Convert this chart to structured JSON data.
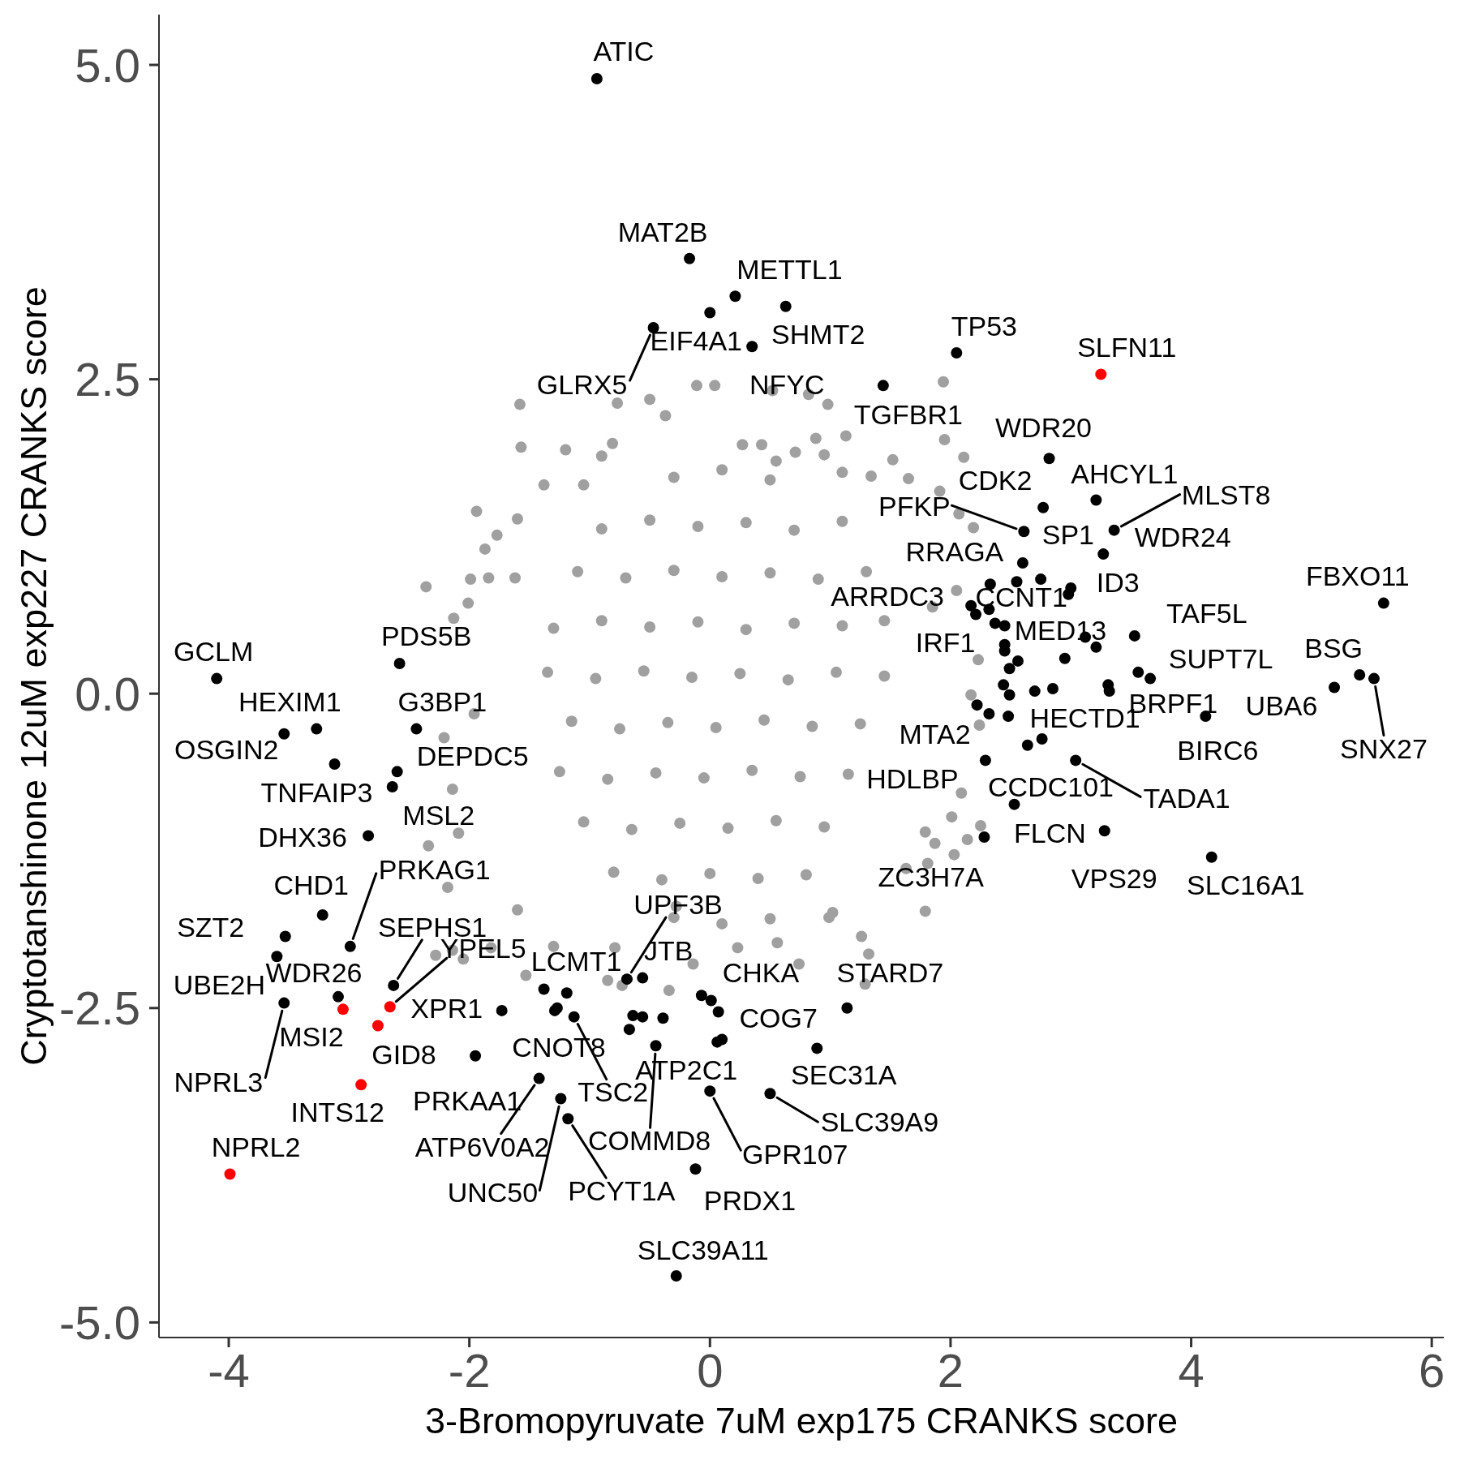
{
  "chart_data": {
    "type": "scatter",
    "xlabel": "3-Bromopyruvate 7uM exp175 CRANKS score",
    "ylabel": "Cryptotanshinone 12uM exp227 CRANKS score",
    "xlim": [
      -4.58,
      6.1
    ],
    "ylim": [
      -5.12,
      5.4
    ],
    "xticks": [
      -4,
      -2,
      0,
      2,
      4,
      6
    ],
    "yticks": [
      {
        "value": -5,
        "label": "-5.0"
      },
      -2.5,
      {
        "value": 0,
        "label": "0.0"
      },
      2.5,
      {
        "value": 5,
        "label": "5.0"
      }
    ],
    "marker": "circle",
    "series": [
      {
        "color": "#a0a0a0",
        "x": [
          -1.58,
          -1.57,
          -1.94,
          -1.77,
          -1.87,
          -2.36,
          -1.99,
          -1.84,
          -2.01,
          -1.38,
          -0.77,
          -0.5,
          -0.37,
          -0.11,
          0.04,
          -0.81,
          -0.9,
          -1.05,
          -1.2,
          -1.6,
          -1.62,
          1.94,
          0.52,
          0.82,
          0.98,
          1.13,
          1.95,
          2.11,
          0.88,
          0.95,
          1.91,
          2.07,
          2.19,
          1.65,
          1.52,
          0.43,
          0.27,
          0.71,
          0.55,
          1.34,
          1.1,
          2.05,
          1.85,
          1.79,
          1.26,
          1.32,
          1.29,
          1.02,
          2.25,
          2.14,
          2.01,
          2.09,
          1.87,
          1.81,
          2.24,
          2.23,
          2.17,
          2.03,
          1.63,
          1.79,
          -0.34,
          -0.14,
          0.56,
          0.74,
          0.23,
          0.99,
          -0.79,
          -0.85,
          -0.73,
          -1.53,
          -1.3,
          -2.14,
          -2.05,
          -2.28,
          -1.6,
          -0.28,
          -2.34,
          -2.09,
          -2.13,
          -2.18,
          -2.21,
          -2.14,
          -1.96,
          -1.82,
          -0.3,
          0.1,
          0.5,
          -0.9,
          -0.5,
          -0.1,
          0.3,
          0.7,
          1.1,
          -1.1,
          -0.7,
          -0.3,
          0.1,
          0.5,
          0.9,
          1.3,
          -1.3,
          -0.9,
          -0.5,
          -0.1,
          0.3,
          0.7,
          1.1,
          1.45,
          -1.35,
          -0.95,
          -0.55,
          -0.15,
          0.25,
          0.65,
          1.05,
          1.45,
          -1.15,
          -0.75,
          -0.35,
          0.05,
          0.45,
          0.85,
          1.25,
          -1.25,
          -0.85,
          -0.45,
          -0.05,
          0.35,
          0.75,
          1.15,
          -1.05,
          -0.65,
          -0.25,
          0.15,
          0.55,
          0.95,
          -0.8,
          -0.4,
          0,
          0.4,
          0.8,
          -0.3,
          0.1,
          0.5
        ],
        "values": [
          2.3,
          1.96,
          1.45,
          1.26,
          1.15,
          0.85,
          0.91,
          0.92,
          0.72,
          1.66,
          2.31,
          2.34,
          2.21,
          2.45,
          2.45,
          1.99,
          1.89,
          1.66,
          1.94,
          1.39,
          0.92,
          2.48,
          2.41,
          2.38,
          2.3,
          2.05,
          2.02,
          1.88,
          2.03,
          1.9,
          1.61,
          1.43,
          1.32,
          1.71,
          1.86,
          1.98,
          1.98,
          1.92,
          1.85,
          1.73,
          1.76,
          0.82,
          0.69,
          -1.73,
          -1.93,
          -2.07,
          -2.31,
          -1.74,
          -1.05,
          -1.16,
          -0.98,
          -0.79,
          -1.19,
          -1.35,
          -0.25,
          0.27,
          -0.01,
          -1.28,
          -1.39,
          -1.1,
          -2.36,
          -2.15,
          -1.98,
          -2.15,
          -2.02,
          -1.78,
          -2.02,
          -2.28,
          -2.32,
          -2.24,
          -2.01,
          -2.04,
          -2.11,
          -2.08,
          -1.72,
          -1.69,
          -1.21,
          -1.11,
          0.6,
          -1.54,
          -0.35,
          -0.76,
          -0.16,
          -2.02,
          1.72,
          1.78,
          1.7,
          1.31,
          1.38,
          1.33,
          1.36,
          1.3,
          1.37,
          0.97,
          0.92,
          0.98,
          0.93,
          0.96,
          0.91,
          0.97,
          0.52,
          0.58,
          0.53,
          0.57,
          0.51,
          0.56,
          0.54,
          0.58,
          0.17,
          0.12,
          0.18,
          0.13,
          0.16,
          0.11,
          0.17,
          0.14,
          -0.22,
          -0.28,
          -0.23,
          -0.27,
          -0.21,
          -0.26,
          -0.24,
          -0.62,
          -0.68,
          -0.63,
          -0.67,
          -0.61,
          -0.66,
          -0.64,
          -1.02,
          -1.08,
          -1.03,
          -1.07,
          -1.01,
          -1.06,
          -1.42,
          -1.48,
          -1.43,
          -1.47,
          -1.44,
          -1.78,
          -1.83,
          -1.79
        ]
      },
      {
        "color": "#000000",
        "x": [
          -0.94,
          -0.17,
          0,
          -0.47,
          0.21,
          0.63,
          0.35,
          1.44,
          2.05,
          2.82,
          2.77,
          3.21,
          2.61,
          3.36,
          3.27,
          2.6,
          2.33,
          2.55,
          2.75,
          3,
          2.98,
          5.6,
          2.17,
          2.32,
          2.21,
          2.37,
          2.45,
          3.53,
          3.12,
          3.21,
          2.45,
          2.45,
          2.56,
          2.49,
          2.95,
          3.56,
          3.66,
          3.31,
          3.32,
          2.44,
          2.49,
          2.7,
          2.85,
          2.22,
          2.32,
          2.48,
          4.12,
          5.19,
          5.4,
          5.52,
          2.64,
          2.76,
          2.29,
          3.04,
          2.53,
          2.28,
          3.28,
          4.17,
          -0.69,
          -0.56,
          -1.38,
          -1.19,
          -1.27,
          -1.29,
          -1.13,
          -1.73,
          -0.64,
          -0.56,
          -0.39,
          -0.67,
          -0.45,
          -0.07,
          0.01,
          0.07,
          0.06,
          0.1,
          1.14,
          0.89,
          0,
          0.5,
          -0.12,
          -0.28,
          -1.42,
          -1.24,
          -1.18,
          -1.95,
          -4.1,
          -3.27,
          -3.54,
          -3.12,
          -2.6,
          -2.64,
          -2.58,
          -2.44,
          -2.84,
          -3.22,
          -2.99,
          -3.53,
          -3.6,
          -3.09,
          -3.54,
          -2.63
        ],
        "values": [
          4.89,
          3.46,
          3.03,
          2.91,
          3.16,
          3.08,
          2.76,
          2.45,
          2.71,
          1.87,
          1.48,
          1.54,
          1.29,
          1.3,
          1.11,
          1.04,
          0.87,
          0.89,
          0.91,
          0.84,
          0.79,
          0.72,
          0.7,
          0.67,
          0.63,
          0.56,
          0.54,
          0.46,
          0.45,
          0.37,
          0.39,
          0.34,
          0.26,
          0.2,
          0.28,
          0.17,
          0.12,
          0.07,
          0.02,
          0.07,
          -0.01,
          0.02,
          0.04,
          -0.09,
          -0.16,
          -0.18,
          -0.18,
          0.05,
          0.15,
          0.12,
          -0.41,
          -0.36,
          -0.53,
          -0.53,
          -0.88,
          -1.14,
          -1.09,
          -1.3,
          -2.27,
          -2.26,
          -2.35,
          -2.38,
          -2.5,
          -2.52,
          -2.57,
          -2.52,
          -2.56,
          -2.57,
          -2.58,
          -2.67,
          -2.8,
          -2.4,
          -2.44,
          -2.53,
          -2.77,
          -2.75,
          -2.5,
          -2.82,
          -3.16,
          -3.18,
          -3.78,
          -4.63,
          -3.06,
          -3.22,
          -3.38,
          -2.88,
          0.12,
          -0.28,
          -0.32,
          -0.56,
          -0.62,
          -0.74,
          0.24,
          -0.28,
          -1.13,
          -1.76,
          -2.01,
          -1.93,
          -2.09,
          -2.41,
          -2.46,
          -2.32
        ]
      },
      {
        "color": "#ff0000",
        "x": [
          3.25,
          -3.05,
          -2.66,
          -2.76,
          -2.9,
          -3.99
        ],
        "values": [
          2.54,
          -2.51,
          -2.49,
          -2.64,
          -3.11,
          -3.82
        ]
      }
    ],
    "annotations": [
      {
        "text": "ATIC",
        "x": -0.94,
        "y": 4.89
      },
      {
        "text": "MAT2B",
        "x": -0.17,
        "y": 3.46
      },
      {
        "text": "METTL1",
        "x": 0.21,
        "y": 3.16
      },
      {
        "text": "SHMT2",
        "x": 0.63,
        "y": 3.08
      },
      {
        "text": "EIF4A1",
        "x": 0,
        "y": 3.03
      },
      {
        "text": "GLRX5",
        "x": -0.47,
        "y": 2.91
      },
      {
        "text": "NFYC",
        "x": 0.35,
        "y": 2.76
      },
      {
        "text": "TP53",
        "x": 2.05,
        "y": 2.71
      },
      {
        "text": "SLFN11",
        "x": 3.25,
        "y": 2.54
      },
      {
        "text": "TGFBR1",
        "x": 1.44,
        "y": 2.45
      },
      {
        "text": "WDR20",
        "x": 2.82,
        "y": 1.87
      },
      {
        "text": "AHCYL1",
        "x": 3.21,
        "y": 1.54
      },
      {
        "text": "CDK2",
        "x": 2.77,
        "y": 1.48
      },
      {
        "text": "MLST8",
        "x": 3.36,
        "y": 1.3
      },
      {
        "text": "PFKP",
        "x": 2.61,
        "y": 1.29
      },
      {
        "text": "WDR24",
        "x": 3.27,
        "y": 1.11
      },
      {
        "text": "SP1",
        "x": 2.6,
        "y": 1.04
      },
      {
        "text": "RRAGA",
        "x": 2.33,
        "y": 0.87
      },
      {
        "text": "CCNT1",
        "x": 2.75,
        "y": 0.91
      },
      {
        "text": "ID3",
        "x": 3,
        "y": 0.84
      },
      {
        "text": "FBXO11",
        "x": 5.6,
        "y": 0.72
      },
      {
        "text": "ARRDC3",
        "x": 2.17,
        "y": 0.7
      },
      {
        "text": "TAF5L",
        "x": 3.53,
        "y": 0.46
      },
      {
        "text": "MED13",
        "x": 3.21,
        "y": 0.37
      },
      {
        "text": "IRF1",
        "x": 2.45,
        "y": 0.39
      },
      {
        "text": "SUPT7L",
        "x": 3.66,
        "y": 0.12
      },
      {
        "text": "BSG",
        "x": 5.4,
        "y": 0.15
      },
      {
        "text": "SNX27",
        "x": 5.52,
        "y": 0.12
      },
      {
        "text": "UBA6",
        "x": 5.19,
        "y": 0.05
      },
      {
        "text": "BRPF1",
        "x": 3.56,
        "y": 0.17
      },
      {
        "text": "BIRC6",
        "x": 4.12,
        "y": -0.18
      },
      {
        "text": "HECTD1",
        "x": 2.76,
        "y": -0.36
      },
      {
        "text": "MTA2",
        "x": 2.22,
        "y": -0.09
      },
      {
        "text": "HDLBP",
        "x": 2.29,
        "y": -0.53
      },
      {
        "text": "TADA1",
        "x": 3.04,
        "y": -0.53
      },
      {
        "text": "CCDC101",
        "x": 2.53,
        "y": -0.88
      },
      {
        "text": "FLCN",
        "x": 2.28,
        "y": -1.14
      },
      {
        "text": "VPS29",
        "x": 3.28,
        "y": -1.09
      },
      {
        "text": "ZC3H7A",
        "x": 1.79,
        "y": -1.73
      },
      {
        "text": "SLC16A1",
        "x": 4.17,
        "y": -1.3
      },
      {
        "text": "GCLM",
        "x": -4.1,
        "y": 0.12
      },
      {
        "text": "PDS5B",
        "x": -2.58,
        "y": 0.24
      },
      {
        "text": "HEXIM1",
        "x": -3.27,
        "y": -0.28
      },
      {
        "text": "G3BP1",
        "x": -2.44,
        "y": -0.28
      },
      {
        "text": "OSGIN2",
        "x": -3.54,
        "y": -0.32
      },
      {
        "text": "TNFAIP3",
        "x": -3.12,
        "y": -0.56
      },
      {
        "text": "DEPDC5",
        "x": -2.6,
        "y": -0.62
      },
      {
        "text": "MSL2",
        "x": -2.64,
        "y": -0.74
      },
      {
        "text": "DHX36",
        "x": -2.84,
        "y": -1.13
      },
      {
        "text": "CHD1",
        "x": -3.22,
        "y": -1.76
      },
      {
        "text": "PRKAG1",
        "x": -2.99,
        "y": -2.01
      },
      {
        "text": "SZT2",
        "x": -3.53,
        "y": -1.93
      },
      {
        "text": "UBE2H",
        "x": -3.6,
        "y": -2.09
      },
      {
        "text": "WDR26",
        "x": -3.09,
        "y": -2.41
      },
      {
        "text": "NPRL3",
        "x": -3.54,
        "y": -2.46
      },
      {
        "text": "SEPHS1",
        "x": -2.63,
        "y": -2.32
      },
      {
        "text": "YPEL5",
        "x": -2.66,
        "y": -2.49
      },
      {
        "text": "MSI2",
        "x": -3.05,
        "y": -2.51
      },
      {
        "text": "GID8",
        "x": -2.76,
        "y": -2.64
      },
      {
        "text": "INTS12",
        "x": -2.9,
        "y": -3.11
      },
      {
        "text": "NPRL2",
        "x": -3.99,
        "y": -3.82
      },
      {
        "text": "XPR1",
        "x": -1.73,
        "y": -2.52
      },
      {
        "text": "UPF3B",
        "x": -0.69,
        "y": -2.27
      },
      {
        "text": "JTB",
        "x": -0.56,
        "y": -2.26
      },
      {
        "text": "LCMT1",
        "x": -1.38,
        "y": -2.35
      },
      {
        "text": "CNOT8",
        "x": -1.29,
        "y": -2.52
      },
      {
        "text": "TSC2",
        "x": -1.13,
        "y": -2.57
      },
      {
        "text": "CHKA",
        "x": -0.07,
        "y": -2.4
      },
      {
        "text": "STARD7",
        "x": 1.14,
        "y": -2.5
      },
      {
        "text": "COG7",
        "x": 0.07,
        "y": -2.53
      },
      {
        "text": "ATP2C1",
        "x": 0.06,
        "y": -2.77
      },
      {
        "text": "COMMD8",
        "x": -0.45,
        "y": -2.8
      },
      {
        "text": "SEC31A",
        "x": 0.89,
        "y": -2.82
      },
      {
        "text": "SLC39A9",
        "x": 0.5,
        "y": -3.18
      },
      {
        "text": "GPR107",
        "x": 0,
        "y": -3.16
      },
      {
        "text": "PRKAA1",
        "x": -1.95,
        "y": -2.88
      },
      {
        "text": "ATP6V0A2",
        "x": -1.42,
        "y": -3.06
      },
      {
        "text": "UNC50",
        "x": -1.24,
        "y": -3.22
      },
      {
        "text": "PCYT1A",
        "x": -1.18,
        "y": -3.38
      },
      {
        "text": "PRDX1",
        "x": -0.12,
        "y": -3.78
      },
      {
        "text": "SLC39A11",
        "x": -0.28,
        "y": -4.63
      }
    ]
  }
}
